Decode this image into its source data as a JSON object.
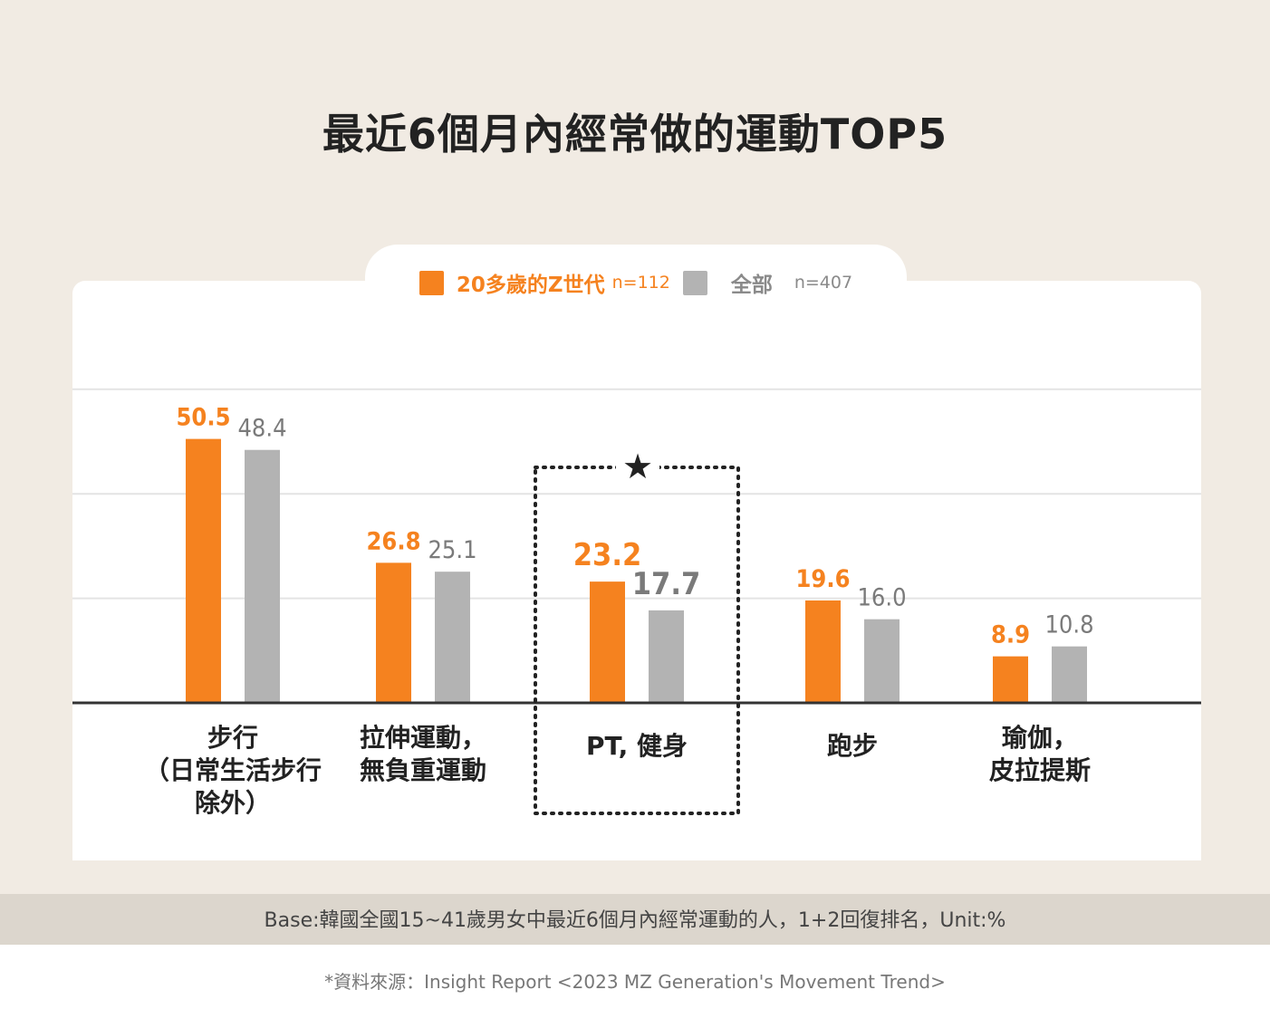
{
  "title": "最近6個月內經常做的運動TOP5",
  "legend": [
    {
      "label": "20多歲的Z世代",
      "n": "n=112",
      "color": "#f5821f"
    },
    {
      "label": "全部",
      "n": "n=407",
      "color": "#b3b3b3"
    }
  ],
  "chart_data": {
    "type": "bar",
    "categories": [
      "步行\n（日常生活步行\n除外）",
      "拉伸運動，\n無負重運動",
      "PT, 健身",
      "跑步",
      "瑜伽，\n皮拉提斯"
    ],
    "series": [
      {
        "name": "20多歲的Z世代",
        "values": [
          50.5,
          26.8,
          23.2,
          19.6,
          8.9
        ],
        "labels": [
          "50.5",
          "26.8",
          "23.2",
          "19.6",
          "8.9"
        ]
      },
      {
        "name": "全部",
        "values": [
          48.4,
          25.1,
          17.7,
          16.0,
          10.8
        ],
        "labels": [
          "48.4",
          "25.1",
          "17.7",
          "16.0",
          "10.8"
        ]
      }
    ],
    "ylim": [
      0,
      60
    ],
    "grid": true,
    "highlight_index": 2,
    "highlight_marker": "★"
  },
  "footer": "Base:韓國全國15~41歲男女中最近6個月內經常運動的人，1+2回復排名，Unit:%",
  "source": "*資料來源：Insight Report <2023 MZ Generation's Movement Trend>"
}
